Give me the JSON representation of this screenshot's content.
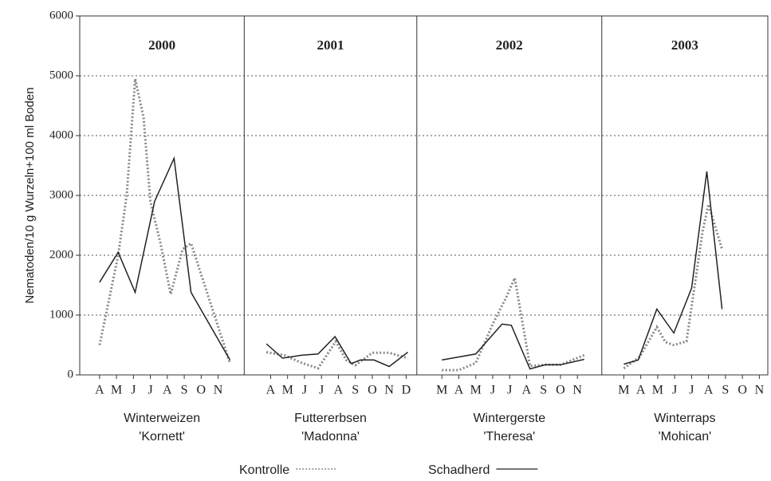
{
  "chart_data": {
    "type": "line",
    "ylabel": "Nematoden/10 g Wurzeln+100 ml Boden",
    "ylim": [
      0,
      6000
    ],
    "yticks": [
      0,
      1000,
      2000,
      3000,
      4000,
      5000,
      6000
    ],
    "grid": true,
    "legend": [
      {
        "name": "Kontrolle",
        "color": "#888888",
        "dashed": true
      },
      {
        "name": "Schadherd",
        "color": "#222222",
        "dashed": false
      }
    ],
    "panels": [
      {
        "year": "2000",
        "crop": "Winterweizen",
        "variety": "'Kornett'",
        "categories": [
          "A",
          "M",
          "J",
          "J",
          "A",
          "S",
          "O",
          "N"
        ],
        "xlim": [
          -1.17,
          8.54
        ],
        "series": [
          {
            "x": [
              0,
              0.3,
              1.1,
              1.6,
              2.1,
              2.6,
              3.0,
              3.6,
              4.2,
              4.9,
              5.4,
              7.7
            ],
            "values": [
              500,
              900,
              2000,
              3000,
              4950,
              4300,
              2900,
              2200,
              1350,
              2100,
              2200,
              200
            ]
          },
          {
            "x": [
              0,
              1.1,
              2.1,
              3.25,
              4.4,
              5.4,
              7.7
            ],
            "values": [
              1550,
              2050,
              1380,
              2900,
              3620,
              1380,
              250
            ]
          }
        ]
      },
      {
        "year": "2001",
        "crop": "Futtererbsen",
        "variety": "'Madonna'",
        "categories": [
          "A",
          "M",
          "J",
          "J",
          "A",
          "S",
          "O",
          "N",
          "D"
        ],
        "xlim": [
          -1.56,
          8.63
        ],
        "series": [
          {
            "x": [
              -0.25,
              0.8,
              1.85,
              2.8,
              3.85,
              4.45,
              5.0,
              6.0,
              7.0,
              8.1
            ],
            "values": [
              380,
              330,
              200,
              110,
              560,
              250,
              160,
              370,
              370,
              280
            ]
          },
          {
            "x": [
              -0.25,
              0.7,
              1.85,
              2.8,
              3.8,
              4.75,
              5.3,
              6.1,
              7.0,
              8.1
            ],
            "values": [
              520,
              280,
              330,
              350,
              640,
              190,
              250,
              250,
              140,
              380
            ]
          }
        ]
      },
      {
        "year": "2002",
        "crop": "Wintergerste",
        "variety": "'Theresa'",
        "categories": [
          "M",
          "A",
          "M",
          "J",
          "J",
          "A",
          "S",
          "O",
          "N"
        ],
        "xlim": [
          -1.48,
          9.44
        ],
        "series": [
          {
            "x": [
              0,
              1,
              2,
              3,
              3.8,
              4.3,
              5.2,
              6.1,
              7,
              8.4
            ],
            "values": [
              80,
              80,
              200,
              850,
              1300,
              1620,
              150,
              170,
              170,
              330
            ]
          },
          {
            "x": [
              0,
              1,
              2,
              3.55,
              4.1,
              5.2,
              6.1,
              7,
              8.4
            ],
            "values": [
              250,
              300,
              350,
              850,
              830,
              100,
              170,
              170,
              260
            ]
          }
        ]
      },
      {
        "year": "2003",
        "crop": "Winterraps",
        "variety": "'Mohican'",
        "categories": [
          "M",
          "A",
          "M",
          "J",
          "J",
          "A",
          "S",
          "O",
          "N"
        ],
        "xlim": [
          -1.3,
          8.5
        ],
        "series": [
          {
            "x": [
              0,
              0.93,
              1.95,
              2.45,
              2.95,
              3.7,
              4.65,
              5.0,
              5.8
            ],
            "values": [
              110,
              300,
              800,
              550,
              500,
              560,
              2400,
              2850,
              2100
            ]
          },
          {
            "x": [
              0,
              0.85,
              1.95,
              2.95,
              4.0,
              4.9,
              5.8
            ],
            "values": [
              180,
              250,
              1100,
              700,
              1450,
              3400,
              1100
            ]
          }
        ]
      }
    ]
  }
}
